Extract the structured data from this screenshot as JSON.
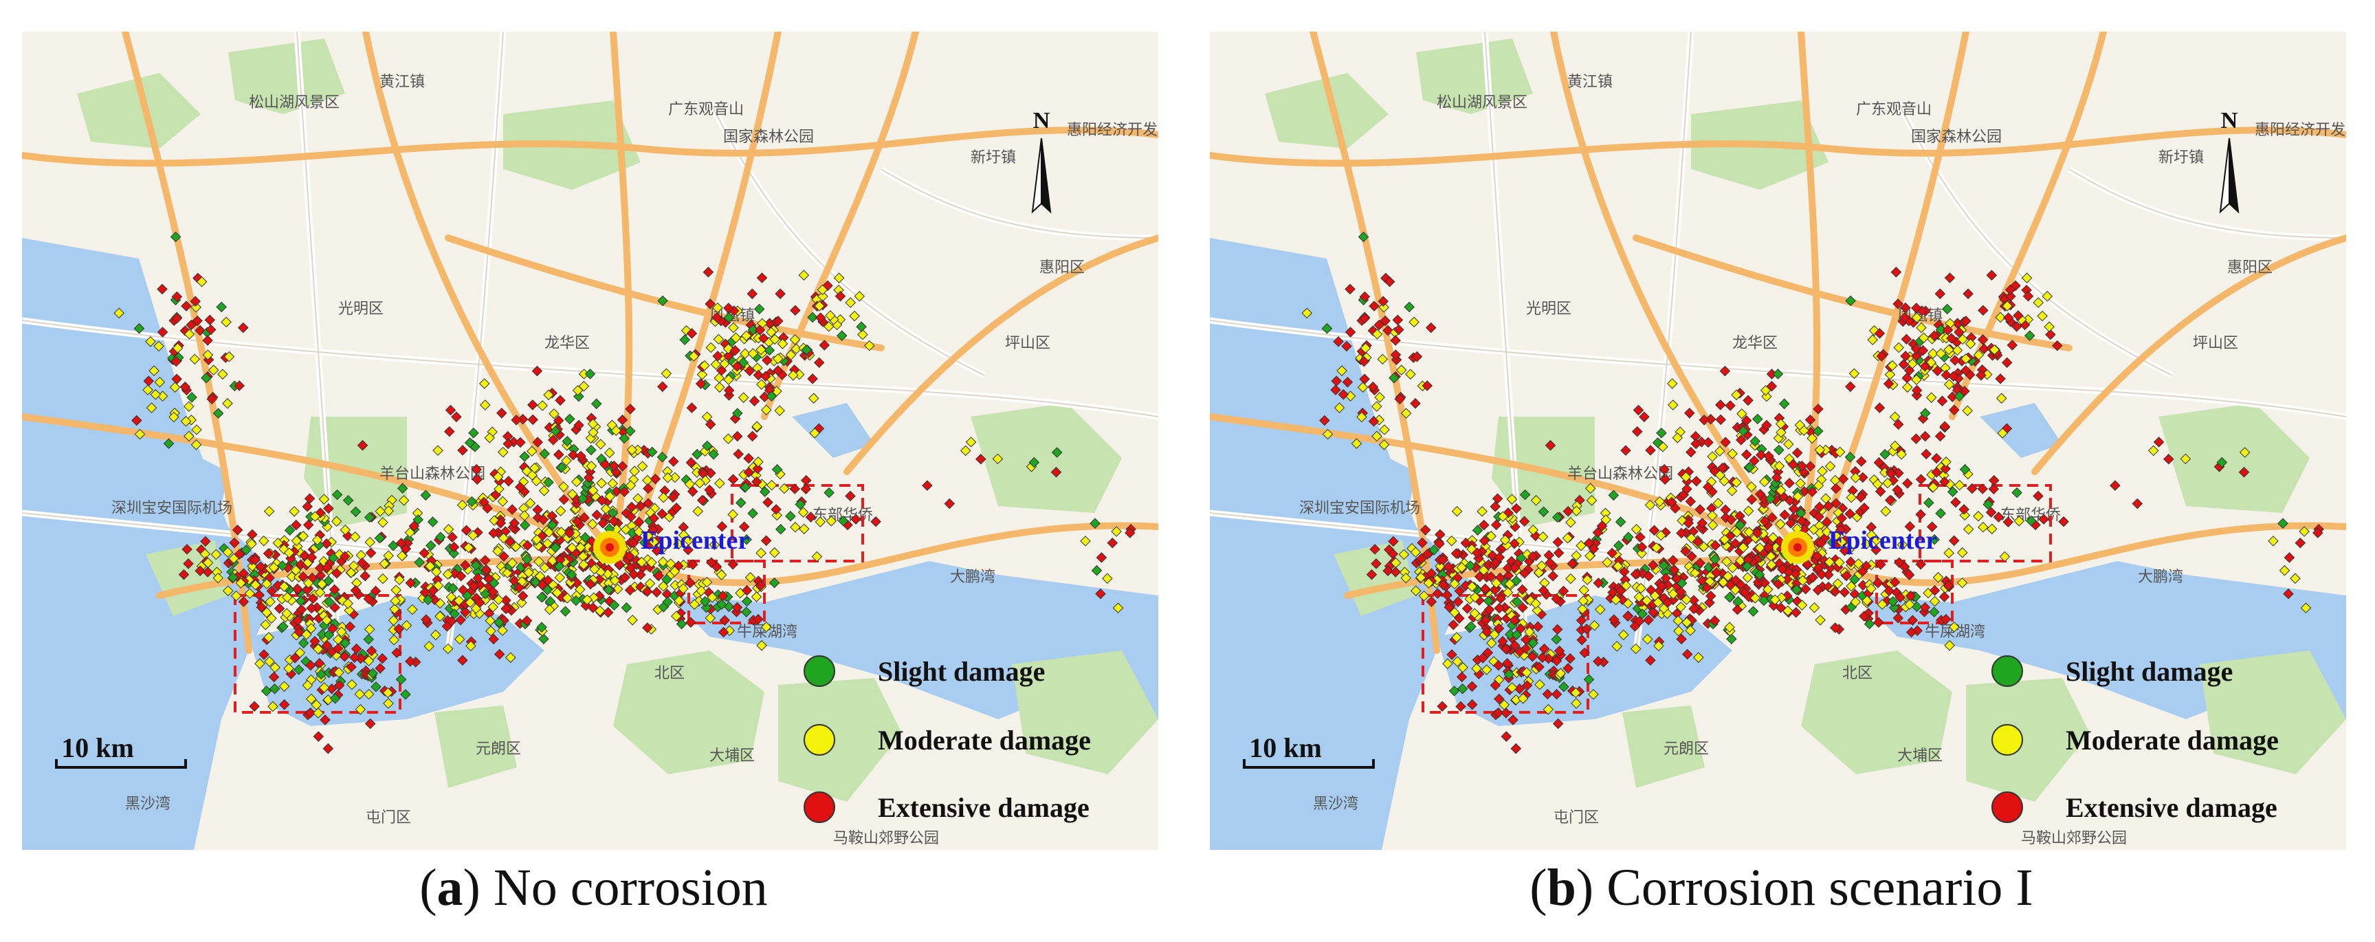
{
  "panels": [
    {
      "id": "a",
      "caption_letter": "a",
      "caption_text": "No corrosion",
      "ratio": {
        "green": 0.18,
        "yellow": 0.4,
        "red": 0.42
      }
    },
    {
      "id": "b",
      "caption_letter": "b",
      "caption_text": "Corrosion scenario I",
      "ratio": {
        "green": 0.1,
        "yellow": 0.34,
        "red": 0.56
      }
    }
  ],
  "legend": {
    "slight": "Slight damage",
    "moderate": "Moderate damage",
    "extensive": "Extensive damage"
  },
  "colors": {
    "slight": "#1fa51f",
    "moderate": "#f2f20a",
    "extensive": "#e01010",
    "water": "#a9cdf0",
    "land": "#f5f2ea",
    "green_area": "#c6e3b0",
    "major_road": "#f5b86a",
    "minor_road": "#ffffff",
    "highlight_box": "#e02020"
  },
  "epicenter_label": "Epicenter",
  "scale_label": "10 km",
  "north_label": "N",
  "map_labels": [
    "黄江镇",
    "松山湖风景区",
    "广东观音山",
    "国家森林公园",
    "新圩镇",
    "惠阳经济开发",
    "光明区",
    "凤凰镇",
    "龙华区",
    "羊台山森林公园",
    "深圳宝安国际机场",
    "东部华侨",
    "大鹏湾",
    "牛屎湖湾",
    "北区",
    "元朗区",
    "大埔区",
    "屯门区",
    "惠阳区",
    "坪山区",
    "黑沙湾",
    "马鞍山郊野公园"
  ]
}
